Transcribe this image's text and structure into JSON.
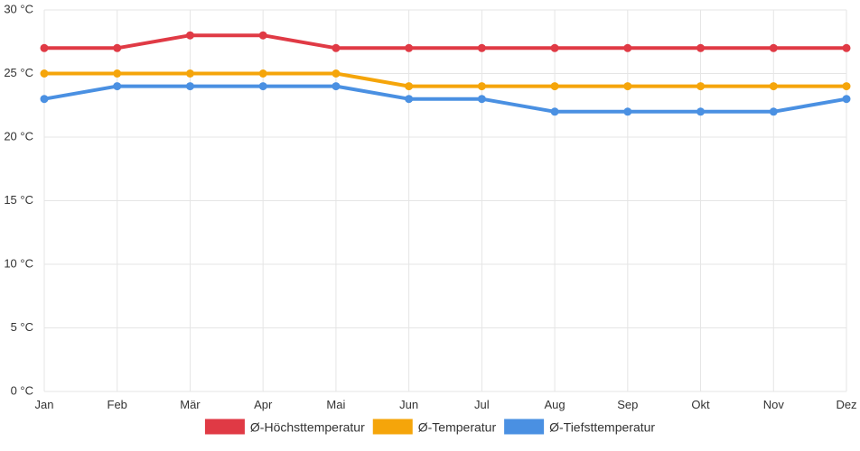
{
  "chart_data": {
    "type": "line",
    "categories": [
      "Jan",
      "Feb",
      "Mär",
      "Apr",
      "Mai",
      "Jun",
      "Jul",
      "Aug",
      "Sep",
      "Okt",
      "Nov",
      "Dez"
    ],
    "y_ticks": [
      0,
      5,
      10,
      15,
      20,
      25,
      30
    ],
    "y_tick_labels": [
      "0 °C",
      "5 °C",
      "10 °C",
      "15 °C",
      "20 °C",
      "25 °C",
      "30 °C"
    ],
    "ylim": [
      0,
      30
    ],
    "grid": true,
    "legend_position": "bottom",
    "series": [
      {
        "name": "Ø-Höchsttemperatur",
        "color": "#e03a45",
        "values": [
          27,
          27,
          28,
          28,
          27,
          27,
          27,
          27,
          27,
          27,
          27,
          27
        ]
      },
      {
        "name": "Ø-Temperatur",
        "color": "#f5a50a",
        "values": [
          25,
          25,
          25,
          25,
          25,
          24,
          24,
          24,
          24,
          24,
          24,
          24
        ]
      },
      {
        "name": "Ø-Tiefsttemperatur",
        "color": "#4a90e2",
        "values": [
          23,
          24,
          24,
          24,
          24,
          23,
          23,
          22,
          22,
          22,
          22,
          23
        ]
      }
    ]
  }
}
